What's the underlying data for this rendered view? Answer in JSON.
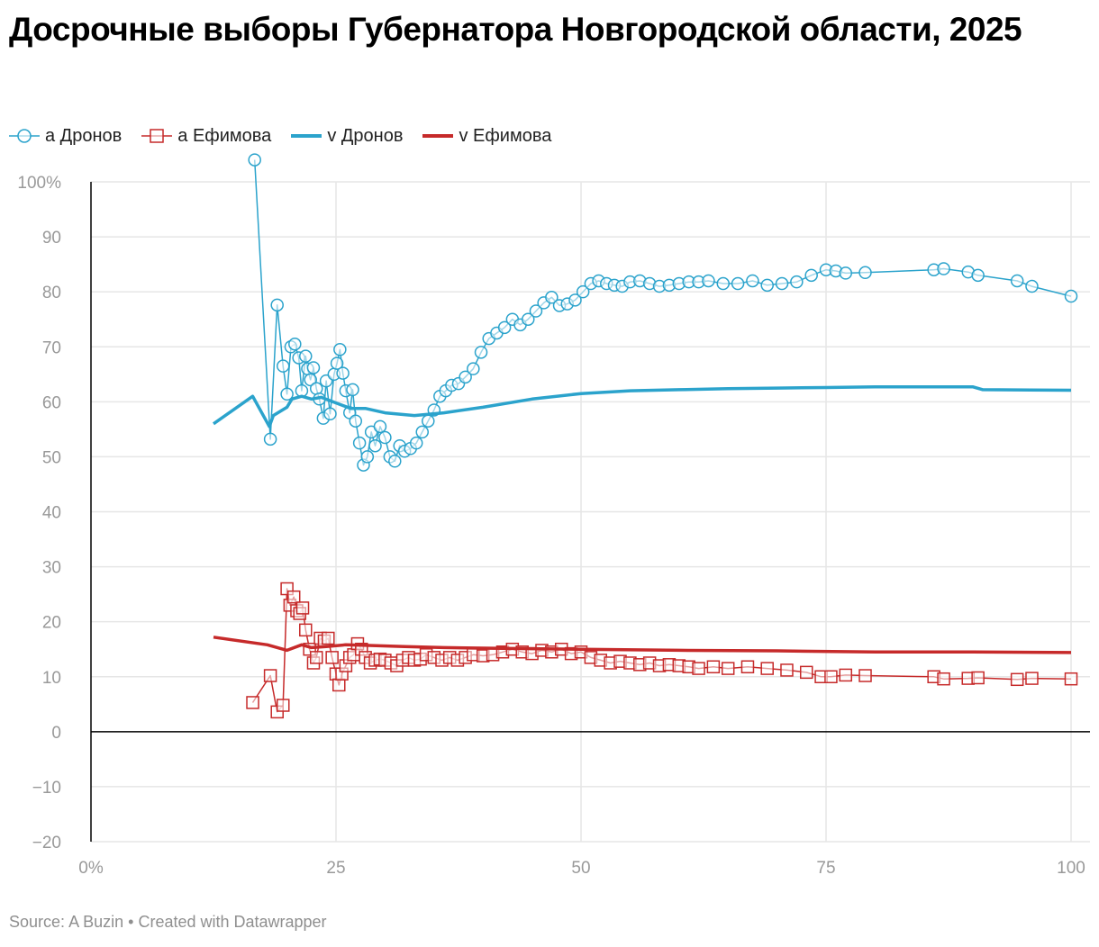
{
  "title": "Досрочные выборы Губернатора Новгородской области, 2025",
  "footer": {
    "source_label": "Source:",
    "source": "A Buzin",
    "separator": "•",
    "credit": "Created with Datawrapper"
  },
  "colors": {
    "dronov": "#2ba3cc",
    "efimova": "#c62a2a",
    "grid": "#e6e6e6",
    "zero_line": "#000000",
    "tick_text": "#999999"
  },
  "chart_data": {
    "type": "scatter",
    "title": "Досрочные выборы Губернатора Новгородской области, 2025",
    "xlabel": "",
    "ylabel": "",
    "xlim": [
      0,
      100
    ],
    "ylim": [
      -20,
      100
    ],
    "x_ticks": [
      {
        "value": 0,
        "label": "0%"
      },
      {
        "value": 25,
        "label": "25"
      },
      {
        "value": 50,
        "label": "50"
      },
      {
        "value": 75,
        "label": "75"
      },
      {
        "value": 100,
        "label": "100"
      }
    ],
    "y_ticks": [
      {
        "value": 100,
        "label": "100%"
      },
      {
        "value": 90,
        "label": "90"
      },
      {
        "value": 80,
        "label": "80"
      },
      {
        "value": 70,
        "label": "70"
      },
      {
        "value": 60,
        "label": "60"
      },
      {
        "value": 50,
        "label": "50"
      },
      {
        "value": 40,
        "label": "40"
      },
      {
        "value": 30,
        "label": "30"
      },
      {
        "value": 20,
        "label": "20"
      },
      {
        "value": 10,
        "label": "10"
      },
      {
        "value": 0,
        "label": "0"
      },
      {
        "value": -10,
        "label": "−10"
      },
      {
        "value": -20,
        "label": "−20"
      }
    ],
    "grid": true,
    "legend_position": "top-left",
    "series": [
      {
        "name": "а Дронов",
        "kind": "markers-circle",
        "color": "#2ba3cc",
        "x": [
          16.7,
          18.3,
          19.0,
          19.6,
          20.0,
          20.4,
          20.8,
          21.2,
          21.5,
          21.9,
          22.1,
          22.4,
          22.7,
          23.0,
          23.3,
          23.7,
          24.0,
          24.4,
          24.8,
          25.1,
          25.4,
          25.7,
          26.0,
          26.4,
          26.7,
          27.0,
          27.4,
          27.8,
          28.2,
          28.6,
          29.0,
          29.5,
          30.0,
          30.5,
          31.0,
          31.5,
          32.0,
          32.6,
          33.2,
          33.8,
          34.4,
          35.0,
          35.6,
          36.2,
          36.8,
          37.5,
          38.2,
          39.0,
          39.8,
          40.6,
          41.4,
          42.2,
          43.0,
          43.8,
          44.6,
          45.4,
          46.2,
          47.0,
          47.8,
          48.6,
          49.4,
          50.2,
          51.0,
          51.8,
          52.6,
          53.4,
          54.2,
          55.0,
          56.0,
          57.0,
          58.0,
          59.0,
          60.0,
          61.0,
          62.0,
          63.0,
          64.5,
          66.0,
          67.5,
          69.0,
          70.5,
          72.0,
          73.5,
          75.0,
          76.0,
          77.0,
          79.0,
          86.0,
          87.0,
          89.5,
          90.5,
          94.5,
          96.0,
          100.0
        ],
        "y": [
          104.0,
          53.2,
          77.6,
          66.5,
          61.4,
          70.0,
          70.5,
          68.0,
          62.0,
          68.3,
          66.0,
          64.0,
          66.2,
          62.4,
          60.5,
          57.0,
          63.8,
          57.8,
          65.0,
          67.0,
          69.5,
          65.2,
          62.0,
          58.0,
          62.2,
          56.5,
          52.5,
          48.5,
          50.0,
          54.5,
          52.0,
          55.5,
          53.5,
          50.0,
          49.2,
          52.0,
          51.0,
          51.5,
          52.5,
          54.5,
          56.5,
          58.5,
          61.0,
          62.0,
          63.0,
          63.3,
          64.5,
          66.0,
          69.0,
          71.5,
          72.5,
          73.5,
          75.0,
          74.0,
          75.0,
          76.5,
          78.0,
          79.0,
          77.5,
          77.8,
          78.5,
          80.0,
          81.5,
          82.0,
          81.5,
          81.2,
          81.0,
          81.8,
          82.0,
          81.5,
          81.0,
          81.2,
          81.5,
          81.8,
          81.8,
          82.0,
          81.5,
          81.5,
          82.0,
          81.2,
          81.5,
          81.8,
          83.0,
          84.0,
          83.8,
          83.4,
          83.5,
          84.0,
          84.2,
          83.6,
          83.0,
          82.0,
          81.0,
          79.2
        ]
      },
      {
        "name": "а Ефимова",
        "kind": "markers-square",
        "color": "#c62a2a",
        "x": [
          16.5,
          18.3,
          19.0,
          19.6,
          20.0,
          20.3,
          20.7,
          21.0,
          21.3,
          21.6,
          21.9,
          22.3,
          22.7,
          23.0,
          23.4,
          23.8,
          24.2,
          24.6,
          25.0,
          25.3,
          25.6,
          26.0,
          26.4,
          26.8,
          27.2,
          27.6,
          28.0,
          28.5,
          29.0,
          29.5,
          30.0,
          30.6,
          31.2,
          31.8,
          32.4,
          33.0,
          33.6,
          34.2,
          35.0,
          35.8,
          36.6,
          37.4,
          38.2,
          39.0,
          40.0,
          41.0,
          42.0,
          43.0,
          44.0,
          45.0,
          46.0,
          47.0,
          48.0,
          49.0,
          50.0,
          51.0,
          52.0,
          53.0,
          54.0,
          55.0,
          56.0,
          57.0,
          58.0,
          59.0,
          60.0,
          61.0,
          62.0,
          63.5,
          65.0,
          67.0,
          69.0,
          71.0,
          73.0,
          74.5,
          75.5,
          77.0,
          79.0,
          86.0,
          87.0,
          89.5,
          90.5,
          94.5,
          96.0,
          100.0
        ],
        "y": [
          5.3,
          10.2,
          3.6,
          4.8,
          26.0,
          23.0,
          24.5,
          22.0,
          21.5,
          22.5,
          18.5,
          15.0,
          12.5,
          13.5,
          17.0,
          16.5,
          17.0,
          13.5,
          10.5,
          8.5,
          10.5,
          12.0,
          13.5,
          14.0,
          16.0,
          15.0,
          13.5,
          12.5,
          13.0,
          13.2,
          13.0,
          12.5,
          12.0,
          13.0,
          13.5,
          13.0,
          13.2,
          14.0,
          13.5,
          13.0,
          13.5,
          13.0,
          13.5,
          14.0,
          13.8,
          14.0,
          14.5,
          15.0,
          14.5,
          14.2,
          14.8,
          14.5,
          15.0,
          14.2,
          14.5,
          13.5,
          13.0,
          12.5,
          12.8,
          12.5,
          12.2,
          12.5,
          12.0,
          12.2,
          12.0,
          11.8,
          11.5,
          11.8,
          11.5,
          11.8,
          11.5,
          11.2,
          10.8,
          10.0,
          10.0,
          10.3,
          10.2,
          10.0,
          9.6,
          9.7,
          9.8,
          9.5,
          9.7,
          9.6
        ]
      },
      {
        "name": "v Дронов",
        "kind": "line",
        "color": "#2ba3cc",
        "x": [
          12.5,
          16.5,
          18.2,
          18.6,
          20.0,
          20.5,
          21.5,
          22.5,
          23.5,
          25.0,
          26.5,
          28.0,
          30.0,
          33.0,
          36.0,
          40.0,
          45.0,
          50.0,
          55.0,
          60.0,
          65.0,
          70.0,
          75.0,
          80.0,
          85.0,
          90.0,
          91.0,
          100.0
        ],
        "y": [
          56.0,
          61.0,
          55.5,
          57.5,
          59.0,
          60.5,
          61.0,
          60.5,
          60.8,
          59.8,
          58.8,
          58.8,
          58.0,
          57.5,
          58.0,
          59.0,
          60.5,
          61.5,
          62.0,
          62.2,
          62.4,
          62.5,
          62.6,
          62.7,
          62.7,
          62.7,
          62.2,
          62.1
        ]
      },
      {
        "name": "v Ефимова",
        "kind": "line",
        "color": "#c62a2a",
        "x": [
          12.5,
          18.0,
          20.0,
          21.5,
          22.5,
          24.0,
          26.0,
          28.0,
          32.0,
          36.0,
          40.0,
          45.0,
          50.0,
          60.0,
          70.0,
          80.0,
          90.0,
          100.0
        ],
        "y": [
          17.2,
          15.8,
          14.8,
          15.8,
          15.3,
          15.5,
          15.8,
          15.7,
          15.5,
          15.3,
          15.2,
          15.1,
          15.0,
          14.8,
          14.7,
          14.5,
          14.5,
          14.4
        ]
      }
    ]
  }
}
